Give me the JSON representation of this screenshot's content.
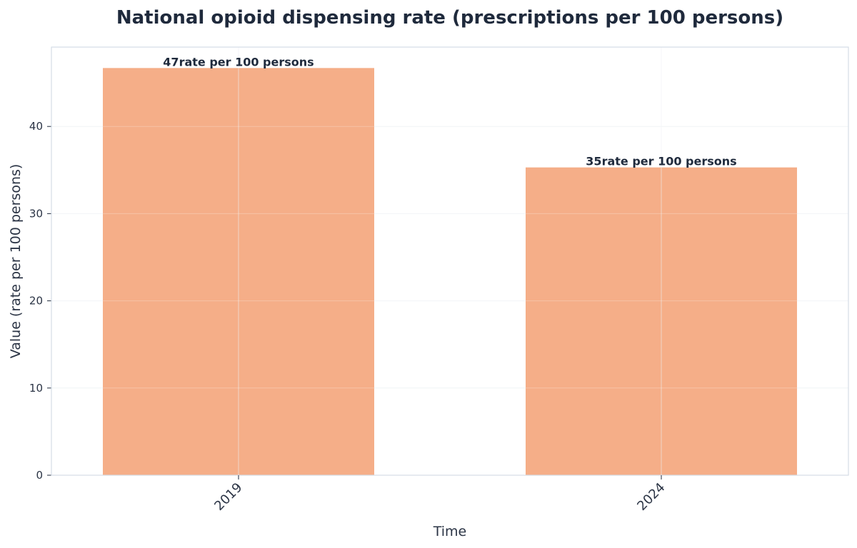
{
  "chart_data": {
    "type": "bar",
    "title": "National opioid dispensing rate (prescriptions per 100 persons)",
    "xlabel": "Time",
    "ylabel": "Value (rate per 100 persons)",
    "categories": [
      "2019",
      "2024"
    ],
    "values": [
      46.7,
      35.3
    ],
    "data_labels": [
      "47rate per 100 persons",
      "35rate per 100 persons"
    ],
    "ylim": [
      0,
      49.1
    ],
    "yticks": [
      0,
      10,
      20,
      30,
      40
    ],
    "grid": true,
    "bar_color": "#f5ae88",
    "colors": {
      "frame": "#d4dde6",
      "grid": "#eef1f4",
      "text": "#1f2a3c"
    }
  }
}
